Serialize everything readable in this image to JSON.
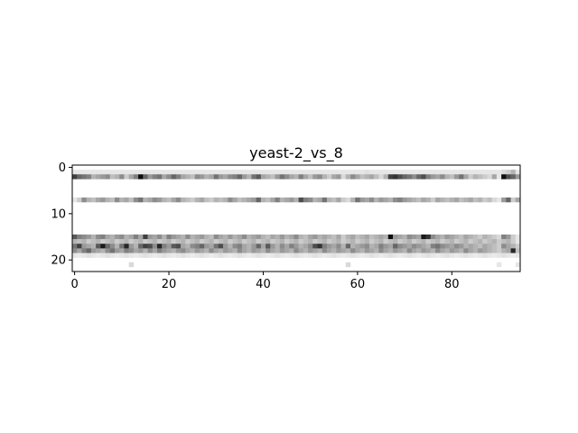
{
  "chart_data": {
    "type": "heatmap",
    "title": "yeast-2_vs_8",
    "xlabel": "",
    "ylabel": "",
    "colormap": "gray_r",
    "n_cols": 95,
    "n_rows": 23,
    "xlim": [
      -0.5,
      94.5
    ],
    "ylim": [
      22.5,
      -0.5
    ],
    "x_ticks": [
      0,
      20,
      40,
      60,
      80
    ],
    "y_ticks": [
      0,
      10,
      20
    ],
    "x_tick_labels": [
      "0",
      "20",
      "40",
      "60",
      "80"
    ],
    "y_tick_labels": [
      "0",
      "10",
      "20"
    ],
    "grid": false,
    "rows": [
      {
        "row": 1,
        "values": [
          0.1,
          0.1,
          0.1,
          0.1,
          0.1,
          0.1,
          0.1,
          0.1,
          0.1,
          0.1,
          0.1,
          0.1,
          0.1,
          0.1,
          0.1,
          0.1,
          0.1,
          0.1,
          0.1,
          0.1,
          0.1,
          0.1,
          0.1,
          0.1,
          0.1,
          0.1,
          0.1,
          0.1,
          0.1,
          0.1,
          0.1,
          0.1,
          0.1,
          0.1,
          0.1,
          0.1,
          0.1,
          0.1,
          0.1,
          0.1,
          0.1,
          0.1,
          0.1,
          0.1,
          0.1,
          0.1,
          0.1,
          0.1,
          0.1,
          0.1,
          0.1,
          0.1,
          0.1,
          0.1,
          0.1,
          0.1,
          0.1,
          0.1,
          0.1,
          0.1,
          0.1,
          0.1,
          0.12,
          0.1,
          0.1,
          0.1,
          0.1,
          0.1,
          0.1,
          0.1,
          0.1,
          0.1,
          0.1,
          0.1,
          0.1,
          0.1,
          0.1,
          0.1,
          0.1,
          0.1,
          0.1,
          0.1,
          0.1,
          0.1,
          0.1,
          0.1,
          0.1,
          0.1,
          0.1,
          0.1,
          0.1,
          0.15,
          0.2,
          0.3,
          0.1
        ]
      },
      {
        "row": 2,
        "values": [
          0.75,
          0.6,
          0.55,
          0.5,
          0.3,
          0.35,
          0.4,
          0.45,
          0.25,
          0.3,
          0.45,
          0.2,
          0.35,
          0.5,
          0.95,
          0.6,
          0.4,
          0.5,
          0.55,
          0.35,
          0.45,
          0.6,
          0.5,
          0.35,
          0.3,
          0.25,
          0.45,
          0.4,
          0.3,
          0.35,
          0.55,
          0.4,
          0.35,
          0.45,
          0.5,
          0.6,
          0.4,
          0.3,
          0.55,
          0.65,
          0.35,
          0.3,
          0.25,
          0.4,
          0.55,
          0.45,
          0.35,
          0.3,
          0.5,
          0.35,
          0.25,
          0.4,
          0.45,
          0.3,
          0.2,
          0.35,
          0.4,
          0.15,
          0.3,
          0.45,
          0.35,
          0.25,
          0.3,
          0.35,
          0.25,
          0.15,
          0.3,
          0.75,
          0.8,
          0.7,
          0.6,
          0.55,
          0.45,
          0.6,
          0.7,
          0.5,
          0.4,
          0.35,
          0.45,
          0.3,
          0.25,
          0.4,
          0.55,
          0.35,
          0.2,
          0.3,
          0.25,
          0.2,
          0.15,
          0.35,
          0.1,
          0.95,
          0.7,
          0.6,
          0.4
        ]
      },
      {
        "row": 7,
        "values": [
          0.1,
          0.2,
          0.45,
          0.3,
          0.25,
          0.35,
          0.4,
          0.3,
          0.25,
          0.45,
          0.3,
          0.35,
          0.25,
          0.45,
          0.55,
          0.3,
          0.35,
          0.45,
          0.4,
          0.3,
          0.25,
          0.35,
          0.45,
          0.3,
          0.25,
          0.2,
          0.3,
          0.35,
          0.25,
          0.2,
          0.3,
          0.25,
          0.3,
          0.45,
          0.35,
          0.25,
          0.3,
          0.35,
          0.4,
          0.6,
          0.3,
          0.25,
          0.35,
          0.5,
          0.3,
          0.35,
          0.4,
          0.3,
          0.7,
          0.5,
          0.45,
          0.3,
          0.35,
          0.55,
          0.3,
          0.25,
          0.35,
          0.2,
          0.15,
          0.3,
          0.55,
          0.4,
          0.35,
          0.45,
          0.3,
          0.4,
          0.35,
          0.3,
          0.45,
          0.5,
          0.4,
          0.35,
          0.3,
          0.25,
          0.35,
          0.3,
          0.2,
          0.35,
          0.3,
          0.25,
          0.3,
          0.35,
          0.25,
          0.3,
          0.35,
          0.25,
          0.3,
          0.2,
          0.25,
          0.15,
          0.1,
          0.4,
          0.6,
          0.2,
          0.35
        ]
      },
      {
        "row": 15,
        "values": [
          0.65,
          0.5,
          0.45,
          0.4,
          0.3,
          0.45,
          0.5,
          0.35,
          0.3,
          0.4,
          0.45,
          0.3,
          0.35,
          0.5,
          0.35,
          0.75,
          0.4,
          0.35,
          0.45,
          0.3,
          0.5,
          0.4,
          0.35,
          0.3,
          0.45,
          0.3,
          0.35,
          0.4,
          0.3,
          0.25,
          0.45,
          0.35,
          0.3,
          0.4,
          0.3,
          0.35,
          0.45,
          0.3,
          0.35,
          0.4,
          0.3,
          0.25,
          0.35,
          0.3,
          0.4,
          0.3,
          0.35,
          0.45,
          0.3,
          0.25,
          0.35,
          0.4,
          0.3,
          0.35,
          0.3,
          0.25,
          0.35,
          0.2,
          0.3,
          0.35,
          0.25,
          0.3,
          0.35,
          0.25,
          0.3,
          0.35,
          0.3,
          0.95,
          0.4,
          0.35,
          0.3,
          0.45,
          0.4,
          0.35,
          0.9,
          0.8,
          0.45,
          0.35,
          0.3,
          0.4,
          0.35,
          0.3,
          0.25,
          0.35,
          0.3,
          0.25,
          0.2,
          0.3,
          0.25,
          0.2,
          0.15,
          0.5,
          0.4,
          0.2,
          0.1
        ]
      },
      {
        "row": 16,
        "values": [
          0.3,
          0.25,
          0.3,
          0.2,
          0.25,
          0.3,
          0.2,
          0.25,
          0.3,
          0.2,
          0.25,
          0.3,
          0.2,
          0.25,
          0.3,
          0.2,
          0.25,
          0.3,
          0.2,
          0.25,
          0.3,
          0.2,
          0.25,
          0.3,
          0.2,
          0.25,
          0.3,
          0.2,
          0.25,
          0.3,
          0.2,
          0.25,
          0.3,
          0.2,
          0.25,
          0.3,
          0.2,
          0.25,
          0.3,
          0.2,
          0.25,
          0.3,
          0.2,
          0.25,
          0.3,
          0.2,
          0.25,
          0.3,
          0.2,
          0.25,
          0.3,
          0.2,
          0.25,
          0.3,
          0.2,
          0.25,
          0.3,
          0.2,
          0.25,
          0.3,
          0.2,
          0.25,
          0.3,
          0.2,
          0.25,
          0.3,
          0.2,
          0.25,
          0.3,
          0.2,
          0.25,
          0.3,
          0.2,
          0.25,
          0.3,
          0.2,
          0.25,
          0.3,
          0.2,
          0.25,
          0.3,
          0.2,
          0.25,
          0.3,
          0.2,
          0.25,
          0.3,
          0.2,
          0.25,
          0.3,
          0.2,
          0.25,
          0.3,
          0.2,
          0.1
        ]
      },
      {
        "row": 17,
        "values": [
          0.55,
          0.75,
          0.4,
          0.35,
          0.3,
          0.65,
          0.9,
          0.6,
          0.45,
          0.3,
          0.55,
          0.85,
          0.4,
          0.3,
          0.6,
          0.75,
          0.7,
          0.45,
          0.85,
          0.5,
          0.4,
          0.65,
          0.7,
          0.35,
          0.3,
          0.45,
          0.5,
          0.6,
          0.4,
          0.35,
          0.55,
          0.7,
          0.4,
          0.3,
          0.45,
          0.5,
          0.35,
          0.3,
          0.4,
          0.6,
          0.35,
          0.65,
          0.4,
          0.3,
          0.45,
          0.35,
          0.5,
          0.4,
          0.3,
          0.35,
          0.45,
          0.7,
          0.8,
          0.5,
          0.4,
          0.35,
          0.45,
          0.3,
          0.6,
          0.3,
          0.35,
          0.4,
          0.45,
          0.3,
          0.35,
          0.5,
          0.4,
          0.35,
          0.6,
          0.45,
          0.4,
          0.35,
          0.45,
          0.4,
          0.35,
          0.3,
          0.5,
          0.55,
          0.45,
          0.4,
          0.35,
          0.45,
          0.4,
          0.3,
          0.35,
          0.3,
          0.25,
          0.35,
          0.3,
          0.25,
          0.2,
          0.45,
          0.35,
          0.3,
          0.2
        ]
      },
      {
        "row": 18,
        "values": [
          0.45,
          0.35,
          0.5,
          0.6,
          0.4,
          0.35,
          0.3,
          0.45,
          0.55,
          0.4,
          0.35,
          0.5,
          0.45,
          0.35,
          0.4,
          0.3,
          0.45,
          0.35,
          0.5,
          0.4,
          0.35,
          0.3,
          0.4,
          0.45,
          0.35,
          0.3,
          0.4,
          0.35,
          0.3,
          0.45,
          0.35,
          0.3,
          0.4,
          0.35,
          0.3,
          0.45,
          0.35,
          0.3,
          0.4,
          0.35,
          0.3,
          0.45,
          0.35,
          0.3,
          0.4,
          0.35,
          0.3,
          0.45,
          0.35,
          0.3,
          0.4,
          0.35,
          0.3,
          0.45,
          0.35,
          0.3,
          0.4,
          0.35,
          0.3,
          0.45,
          0.35,
          0.3,
          0.4,
          0.35,
          0.3,
          0.45,
          0.35,
          0.3,
          0.4,
          0.35,
          0.3,
          0.45,
          0.35,
          0.3,
          0.4,
          0.35,
          0.3,
          0.45,
          0.35,
          0.3,
          0.4,
          0.35,
          0.3,
          0.45,
          0.35,
          0.3,
          0.4,
          0.35,
          0.3,
          0.25,
          0.2,
          0.3,
          0.35,
          0.85,
          0.25
        ]
      },
      {
        "row": 19,
        "values": [
          0.1,
          0.08,
          0.1,
          0.12,
          0.1,
          0.08,
          0.1,
          0.12,
          0.1,
          0.08,
          0.1,
          0.12,
          0.1,
          0.08,
          0.1,
          0.12,
          0.1,
          0.08,
          0.1,
          0.12,
          0.1,
          0.08,
          0.1,
          0.12,
          0.1,
          0.08,
          0.1,
          0.12,
          0.1,
          0.08,
          0.1,
          0.12,
          0.1,
          0.08,
          0.1,
          0.12,
          0.1,
          0.08,
          0.1,
          0.12,
          0.1,
          0.08,
          0.1,
          0.12,
          0.1,
          0.08,
          0.1,
          0.12,
          0.1,
          0.08,
          0.1,
          0.12,
          0.1,
          0.08,
          0.1,
          0.12,
          0.1,
          0.08,
          0.1,
          0.12,
          0.1,
          0.08,
          0.1,
          0.12,
          0.1,
          0.08,
          0.1,
          0.12,
          0.1,
          0.08,
          0.1,
          0.12,
          0.1,
          0.08,
          0.1,
          0.12,
          0.1,
          0.08,
          0.1,
          0.12,
          0.1,
          0.08,
          0.1,
          0.12,
          0.1,
          0.08,
          0.1,
          0.12,
          0.1,
          0.08,
          0.1,
          0.12,
          0.1,
          0.08,
          0.1
        ]
      },
      {
        "row": 21,
        "values": [
          0,
          0,
          0,
          0,
          0,
          0,
          0,
          0,
          0,
          0,
          0,
          0,
          0.15,
          0,
          0,
          0,
          0,
          0,
          0,
          0,
          0,
          0,
          0,
          0,
          0,
          0,
          0,
          0,
          0,
          0,
          0,
          0,
          0,
          0,
          0,
          0,
          0,
          0,
          0,
          0,
          0,
          0,
          0,
          0,
          0,
          0,
          0,
          0,
          0,
          0,
          0,
          0,
          0,
          0,
          0,
          0,
          0,
          0,
          0.15,
          0,
          0,
          0,
          0,
          0,
          0,
          0,
          0,
          0,
          0,
          0,
          0,
          0,
          0,
          0,
          0,
          0,
          0,
          0,
          0,
          0,
          0,
          0,
          0,
          0,
          0,
          0,
          0,
          0,
          0,
          0,
          0.1,
          0,
          0,
          0,
          0.1
        ]
      }
    ]
  }
}
